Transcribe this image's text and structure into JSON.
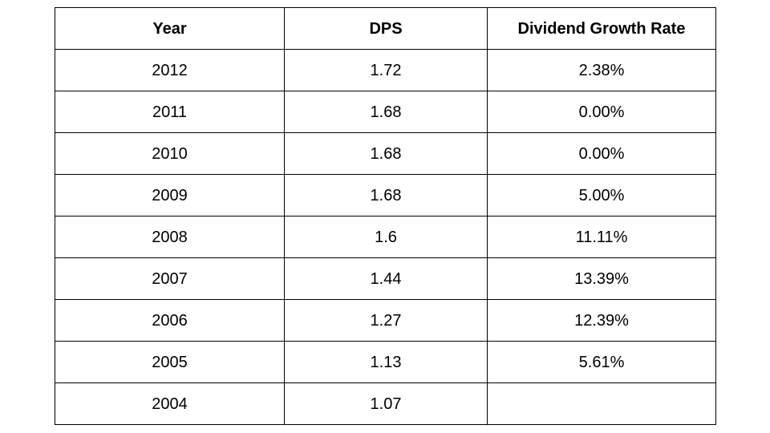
{
  "table": {
    "headers": [
      "Year",
      "DPS",
      "Dividend Growth Rate"
    ],
    "rows": [
      [
        "2012",
        "1.72",
        "2.38%"
      ],
      [
        "2011",
        "1.68",
        "0.00%"
      ],
      [
        "2010",
        "1.68",
        "0.00%"
      ],
      [
        "2009",
        "1.68",
        "5.00%"
      ],
      [
        "2008",
        "1.6",
        "11.11%"
      ],
      [
        "2007",
        "1.44",
        "13.39%"
      ],
      [
        "2006",
        "1.27",
        "12.39%"
      ],
      [
        "2005",
        "1.13",
        "5.61%"
      ],
      [
        "2004",
        "1.07",
        ""
      ]
    ]
  }
}
